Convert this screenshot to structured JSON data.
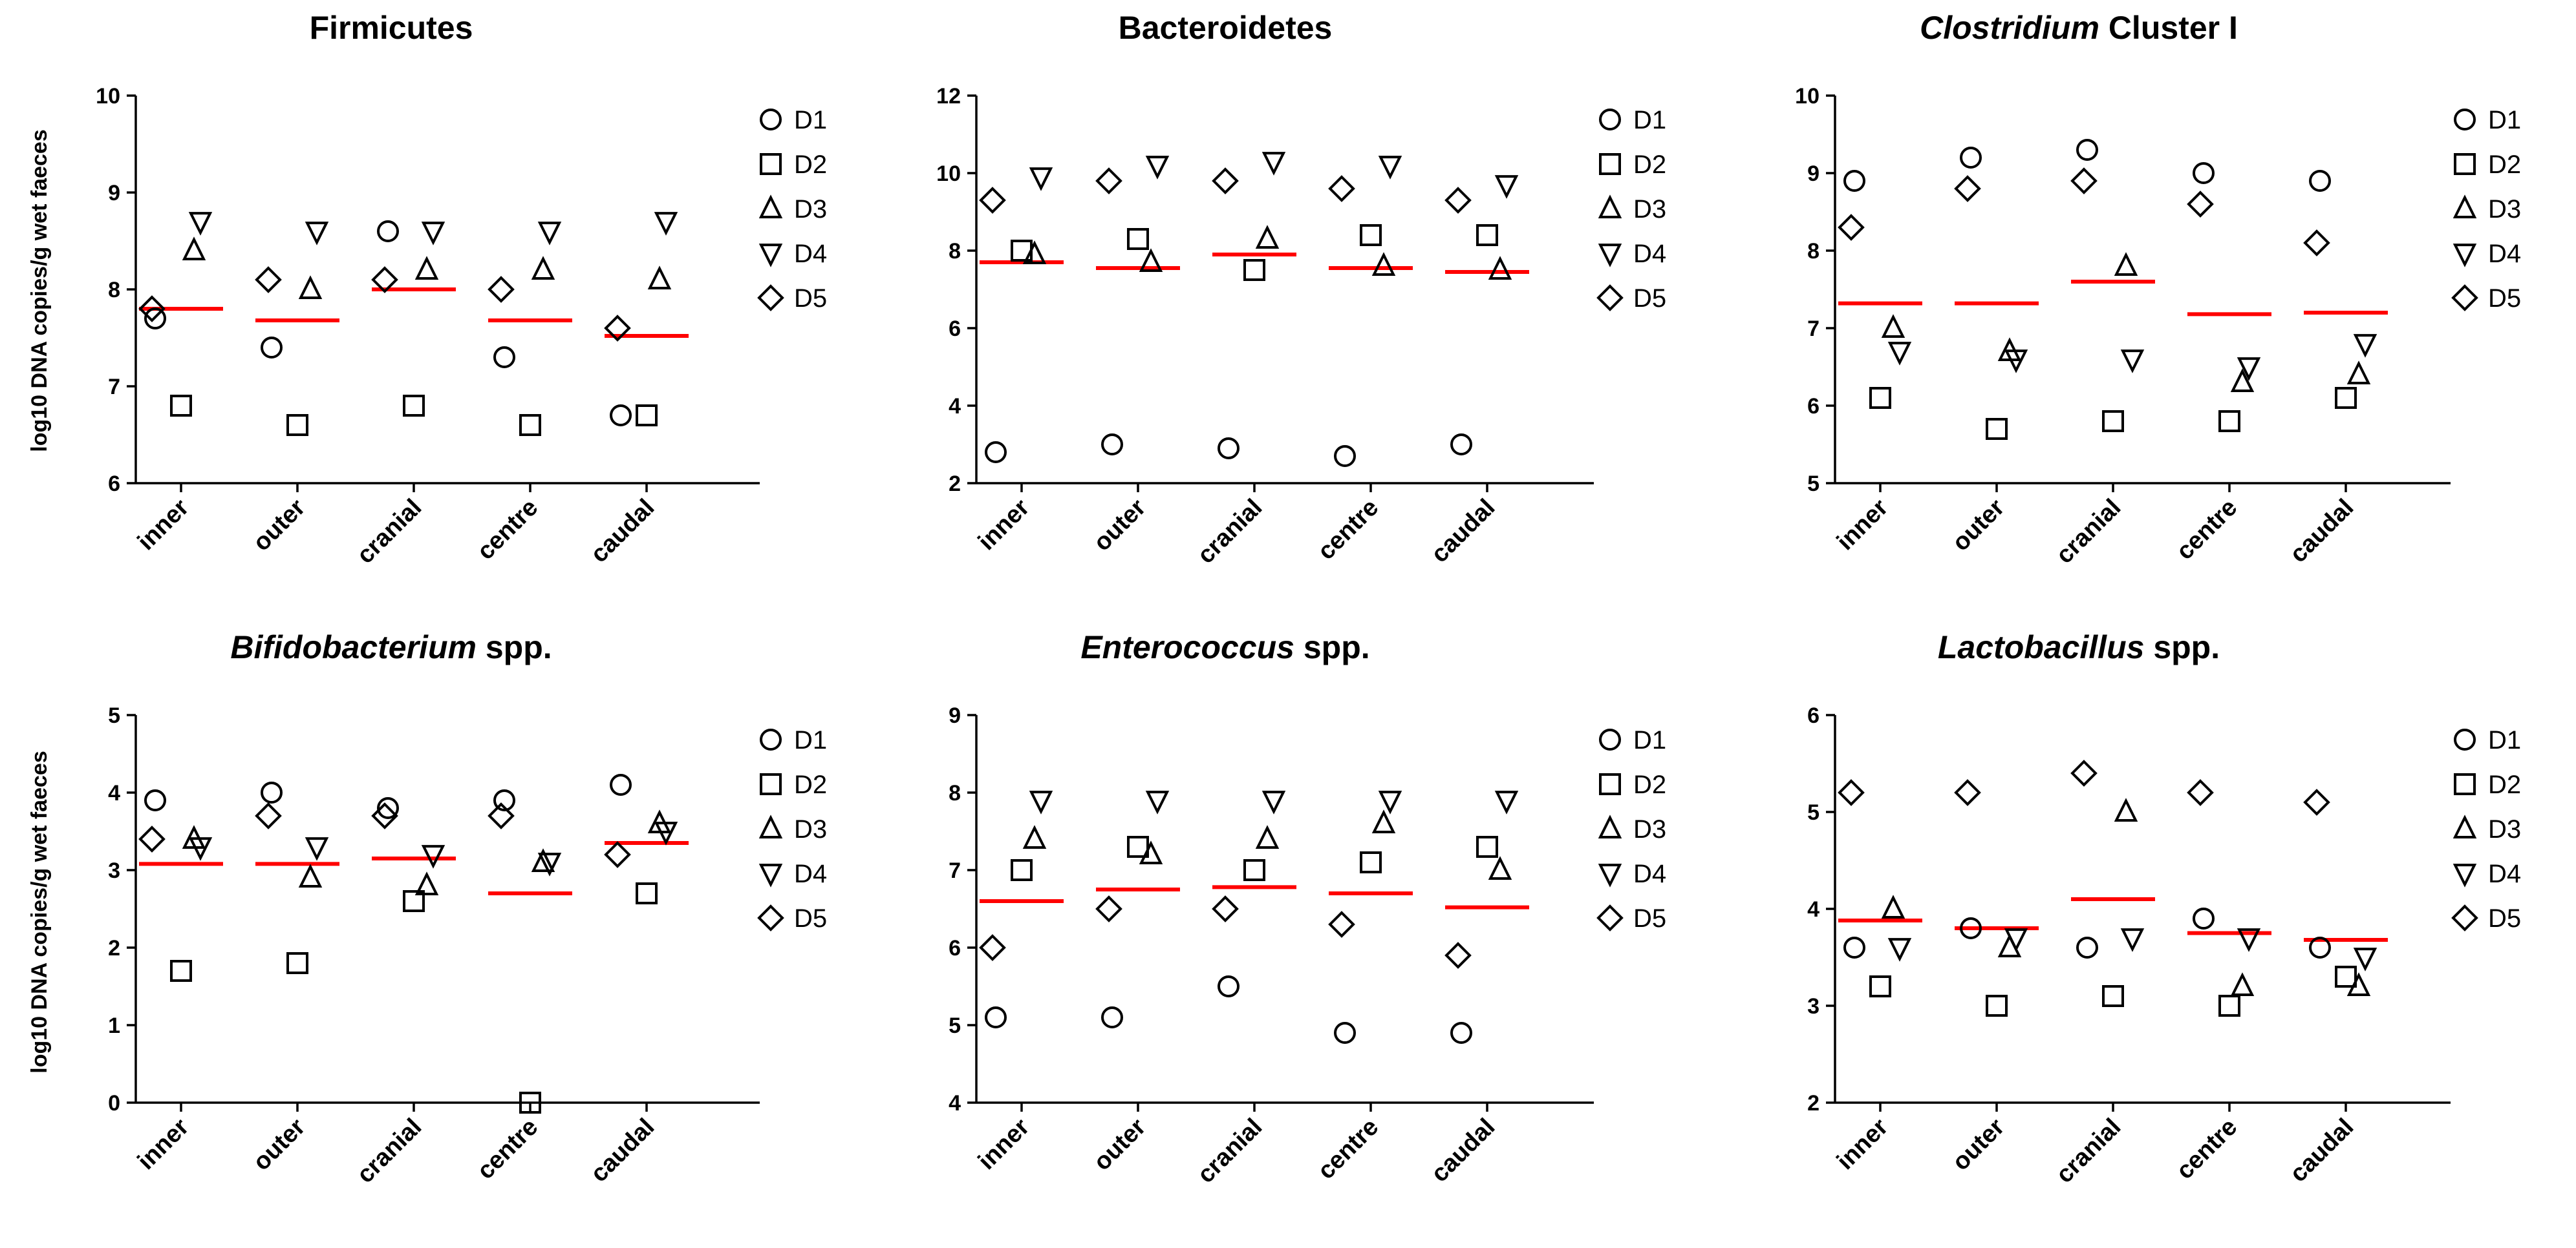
{
  "figure": {
    "categories": [
      "inner",
      "outer",
      "cranial",
      "centre",
      "caudal"
    ],
    "series_names": [
      "D1",
      "D2",
      "D3",
      "D4",
      "D5"
    ],
    "ylabel": "log10 DNA copies/g wet faeces",
    "mean_line_color": "#ff0000",
    "marker_color": "#000000"
  },
  "chart_data": [
    {
      "type": "scatter",
      "title": "Firmicutes",
      "title_parts": [
        {
          "text": "Firmicutes",
          "italic": false
        }
      ],
      "ylabel": "log10 DNA copies/g wet faeces",
      "ylim": [
        6,
        10
      ],
      "yticks": [
        "6",
        "7",
        "8",
        "9",
        "10"
      ],
      "categories": [
        "inner",
        "outer",
        "cranial",
        "centre",
        "caudal"
      ],
      "series": [
        {
          "name": "D1",
          "marker": "circle",
          "values": [
            7.7,
            7.4,
            8.6,
            7.3,
            6.7
          ]
        },
        {
          "name": "D2",
          "marker": "square",
          "values": [
            6.8,
            6.6,
            6.8,
            6.6,
            6.7
          ]
        },
        {
          "name": "D3",
          "marker": "triangle-up",
          "values": [
            8.4,
            8.0,
            8.2,
            8.2,
            8.1
          ]
        },
        {
          "name": "D4",
          "marker": "triangle-down",
          "values": [
            8.7,
            8.6,
            8.6,
            8.6,
            8.7
          ]
        },
        {
          "name": "D5",
          "marker": "diamond",
          "values": [
            7.8,
            8.1,
            8.1,
            8.0,
            7.6
          ]
        }
      ],
      "means": [
        7.8,
        7.68,
        8.0,
        7.68,
        7.52
      ]
    },
    {
      "type": "scatter",
      "title": "Bacteroidetes",
      "title_parts": [
        {
          "text": "Bacteroidetes",
          "italic": false
        }
      ],
      "ylabel": "",
      "ylim": [
        2,
        12
      ],
      "yticks": [
        "2",
        "4",
        "6",
        "8",
        "10",
        "12"
      ],
      "categories": [
        "inner",
        "outer",
        "cranial",
        "centre",
        "caudal"
      ],
      "series": [
        {
          "name": "D1",
          "marker": "circle",
          "values": [
            2.8,
            3.0,
            2.9,
            2.7,
            3.0
          ]
        },
        {
          "name": "D2",
          "marker": "square",
          "values": [
            8.0,
            8.3,
            7.5,
            8.4,
            8.4
          ]
        },
        {
          "name": "D3",
          "marker": "triangle-up",
          "values": [
            7.9,
            7.7,
            8.3,
            7.6,
            7.5
          ]
        },
        {
          "name": "D4",
          "marker": "triangle-down",
          "values": [
            9.9,
            10.2,
            10.3,
            10.2,
            9.7
          ]
        },
        {
          "name": "D5",
          "marker": "diamond",
          "values": [
            9.3,
            9.8,
            9.8,
            9.6,
            9.3
          ]
        }
      ],
      "means": [
        7.7,
        7.55,
        7.9,
        7.55,
        7.45
      ]
    },
    {
      "type": "scatter",
      "title": "Clostridium Cluster I",
      "title_parts": [
        {
          "text": "Clostridium",
          "italic": true
        },
        {
          "text": " Cluster I",
          "italic": false
        }
      ],
      "ylabel": "",
      "ylim": [
        5,
        10
      ],
      "yticks": [
        "5",
        "6",
        "7",
        "8",
        "9",
        "10"
      ],
      "categories": [
        "inner",
        "outer",
        "cranial",
        "centre",
        "caudal"
      ],
      "series": [
        {
          "name": "D1",
          "marker": "circle",
          "values": [
            8.9,
            9.2,
            9.3,
            9.0,
            8.9
          ]
        },
        {
          "name": "D2",
          "marker": "square",
          "values": [
            6.1,
            5.7,
            5.8,
            5.8,
            6.1
          ]
        },
        {
          "name": "D3",
          "marker": "triangle-up",
          "values": [
            7.0,
            6.7,
            7.8,
            6.3,
            6.4
          ]
        },
        {
          "name": "D4",
          "marker": "triangle-down",
          "values": [
            6.7,
            6.6,
            6.6,
            6.5,
            6.8
          ]
        },
        {
          "name": "D5",
          "marker": "diamond",
          "values": [
            8.3,
            8.8,
            8.9,
            8.6,
            8.1
          ]
        }
      ],
      "means": [
        7.32,
        7.32,
        7.6,
        7.18,
        7.2
      ]
    },
    {
      "type": "scatter",
      "title": "Bifidobacterium spp.",
      "title_parts": [
        {
          "text": "Bifidobacterium",
          "italic": true
        },
        {
          "text": " spp.",
          "italic": false
        }
      ],
      "ylabel": "log10 DNA copies/g wet faeces",
      "ylim": [
        0,
        5
      ],
      "yticks": [
        "0",
        "1",
        "2",
        "3",
        "4",
        "5"
      ],
      "categories": [
        "inner",
        "outer",
        "cranial",
        "centre",
        "caudal"
      ],
      "series": [
        {
          "name": "D1",
          "marker": "circle",
          "values": [
            3.9,
            4.0,
            3.8,
            3.9,
            4.1
          ]
        },
        {
          "name": "D2",
          "marker": "square",
          "values": [
            1.7,
            1.8,
            2.6,
            0.0,
            2.7
          ]
        },
        {
          "name": "D3",
          "marker": "triangle-up",
          "values": [
            3.4,
            2.9,
            2.8,
            3.1,
            3.6
          ]
        },
        {
          "name": "D4",
          "marker": "triangle-down",
          "values": [
            3.3,
            3.3,
            3.2,
            3.1,
            3.5
          ]
        },
        {
          "name": "D5",
          "marker": "diamond",
          "values": [
            3.4,
            3.7,
            3.7,
            3.7,
            3.2
          ]
        }
      ],
      "means": [
        3.08,
        3.08,
        3.15,
        2.7,
        3.35
      ]
    },
    {
      "type": "scatter",
      "title": "Enterococcus spp.",
      "title_parts": [
        {
          "text": "Enterococcus",
          "italic": true
        },
        {
          "text": " spp.",
          "italic": false
        }
      ],
      "ylabel": "",
      "ylim": [
        4,
        9
      ],
      "yticks": [
        "4",
        "5",
        "6",
        "7",
        "8",
        "9"
      ],
      "categories": [
        "inner",
        "outer",
        "cranial",
        "centre",
        "caudal"
      ],
      "series": [
        {
          "name": "D1",
          "marker": "circle",
          "values": [
            5.1,
            5.1,
            5.5,
            4.9,
            4.9
          ]
        },
        {
          "name": "D2",
          "marker": "square",
          "values": [
            7.0,
            7.3,
            7.0,
            7.1,
            7.3
          ]
        },
        {
          "name": "D3",
          "marker": "triangle-up",
          "values": [
            7.4,
            7.2,
            7.4,
            7.6,
            7.0
          ]
        },
        {
          "name": "D4",
          "marker": "triangle-down",
          "values": [
            7.9,
            7.9,
            7.9,
            7.9,
            7.9
          ]
        },
        {
          "name": "D5",
          "marker": "diamond",
          "values": [
            6.0,
            6.5,
            6.5,
            6.3,
            5.9
          ]
        }
      ],
      "means": [
        6.6,
        6.75,
        6.78,
        6.7,
        6.52
      ]
    },
    {
      "type": "scatter",
      "title": "Lactobacillus spp.",
      "title_parts": [
        {
          "text": "Lactobacillus",
          "italic": true
        },
        {
          "text": " spp.",
          "italic": false
        }
      ],
      "ylabel": "",
      "ylim": [
        2,
        6
      ],
      "yticks": [
        "2",
        "3",
        "4",
        "5",
        "6"
      ],
      "categories": [
        "inner",
        "outer",
        "cranial",
        "centre",
        "caudal"
      ],
      "series": [
        {
          "name": "D1",
          "marker": "circle",
          "values": [
            3.6,
            3.8,
            3.6,
            3.9,
            3.6
          ]
        },
        {
          "name": "D2",
          "marker": "square",
          "values": [
            3.2,
            3.0,
            3.1,
            3.0,
            3.3
          ]
        },
        {
          "name": "D3",
          "marker": "triangle-up",
          "values": [
            4.0,
            3.6,
            5.0,
            3.2,
            3.2
          ]
        },
        {
          "name": "D4",
          "marker": "triangle-down",
          "values": [
            3.6,
            3.7,
            3.7,
            3.7,
            3.5
          ]
        },
        {
          "name": "D5",
          "marker": "diamond",
          "values": [
            5.2,
            5.2,
            5.4,
            5.2,
            5.1
          ]
        }
      ],
      "means": [
        3.88,
        3.8,
        4.1,
        3.75,
        3.68
      ]
    }
  ]
}
